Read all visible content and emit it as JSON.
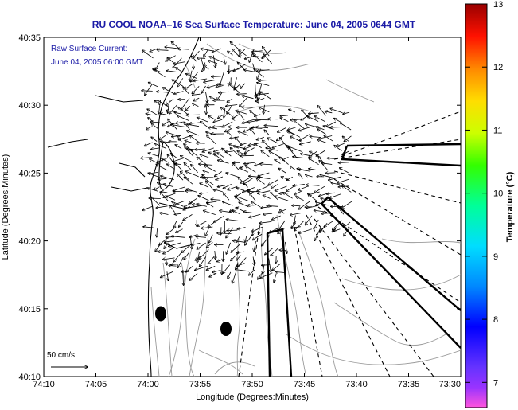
{
  "chart_data": {
    "type": "vector-field-map",
    "title": "RU COOL  NOAA–16  Sea Surface Temperature:  June 04, 2005 0644 GMT",
    "annotation": {
      "line1": "Raw Surface Current:",
      "line2": "June 04, 2005 06:00 GMT"
    },
    "scale_label": "50 cm/s",
    "xlabel": "Longitude (Degrees:Minutes)",
    "ylabel": "Latitude (Degrees:Minutes)",
    "x_ticks": [
      "74:10",
      "74:05",
      "74:00",
      "73:55",
      "73:50",
      "73:45",
      "73:40",
      "73:35",
      "73:30"
    ],
    "y_ticks": [
      "40:35",
      "40:30",
      "40:25",
      "40:20",
      "40:15",
      "40:10"
    ],
    "xlim": [
      "74:10 W",
      "73:30 W"
    ],
    "ylim": [
      "40:10 N",
      "40:35 N"
    ],
    "colorbar": {
      "label": "Temperature (°C)",
      "ticks": [
        "13",
        "12",
        "11",
        "10",
        "9",
        "8",
        "7"
      ],
      "range": [
        6.6,
        13
      ]
    },
    "markers": [
      {
        "type": "buoy",
        "lon": "74:00",
        "lat": "40:15"
      },
      {
        "type": "buoy",
        "lon": "73:53",
        "lat": "40:14"
      }
    ]
  }
}
